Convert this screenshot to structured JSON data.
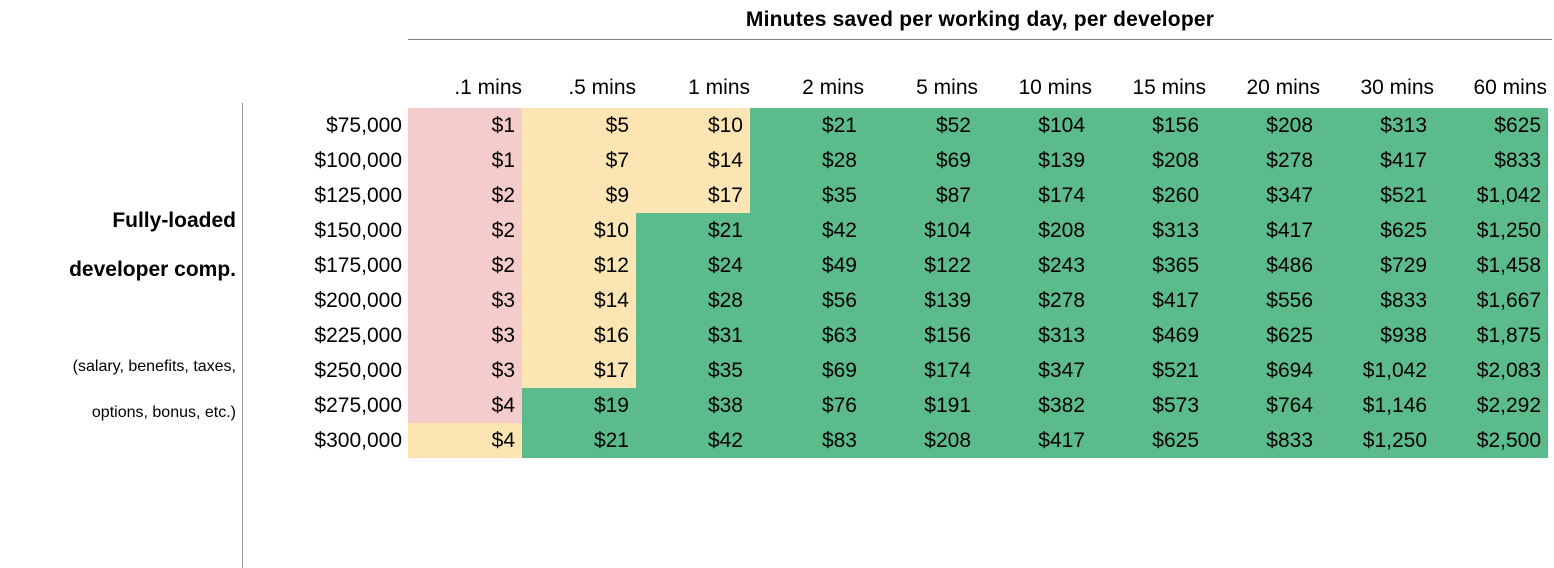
{
  "title": "Minutes saved per working day, per developer",
  "side_label": {
    "line1": "Fully-loaded",
    "line2": "developer comp.",
    "note1": "(salary, benefits, taxes,",
    "note2": "options, bonus, etc.)"
  },
  "colors": {
    "low": "#f4cccc",
    "mid": "#fce5b3",
    "high": "#5bbb8b"
  },
  "columns": [
    ".1 mins",
    ".5 mins",
    "1 mins",
    "2 mins",
    "5 mins",
    "10 mins",
    "15 mins",
    "20 mins",
    "30 mins",
    "60 mins"
  ],
  "rows": [
    {
      "comp": "$75,000",
      "values": [
        "$1",
        "$5",
        "$10",
        "$21",
        "$52",
        "$104",
        "$156",
        "$208",
        "$313",
        "$625"
      ],
      "tiers": [
        "low",
        "mid",
        "mid",
        "high",
        "high",
        "high",
        "high",
        "high",
        "high",
        "high"
      ]
    },
    {
      "comp": "$100,000",
      "values": [
        "$1",
        "$7",
        "$14",
        "$28",
        "$69",
        "$139",
        "$208",
        "$278",
        "$417",
        "$833"
      ],
      "tiers": [
        "low",
        "mid",
        "mid",
        "high",
        "high",
        "high",
        "high",
        "high",
        "high",
        "high"
      ]
    },
    {
      "comp": "$125,000",
      "values": [
        "$2",
        "$9",
        "$17",
        "$35",
        "$87",
        "$174",
        "$260",
        "$347",
        "$521",
        "$1,042"
      ],
      "tiers": [
        "low",
        "mid",
        "mid",
        "high",
        "high",
        "high",
        "high",
        "high",
        "high",
        "high"
      ]
    },
    {
      "comp": "$150,000",
      "values": [
        "$2",
        "$10",
        "$21",
        "$42",
        "$104",
        "$208",
        "$313",
        "$417",
        "$625",
        "$1,250"
      ],
      "tiers": [
        "low",
        "mid",
        "high",
        "high",
        "high",
        "high",
        "high",
        "high",
        "high",
        "high"
      ]
    },
    {
      "comp": "$175,000",
      "values": [
        "$2",
        "$12",
        "$24",
        "$49",
        "$122",
        "$243",
        "$365",
        "$486",
        "$729",
        "$1,458"
      ],
      "tiers": [
        "low",
        "mid",
        "high",
        "high",
        "high",
        "high",
        "high",
        "high",
        "high",
        "high"
      ]
    },
    {
      "comp": "$200,000",
      "values": [
        "$3",
        "$14",
        "$28",
        "$56",
        "$139",
        "$278",
        "$417",
        "$556",
        "$833",
        "$1,667"
      ],
      "tiers": [
        "low",
        "mid",
        "high",
        "high",
        "high",
        "high",
        "high",
        "high",
        "high",
        "high"
      ]
    },
    {
      "comp": "$225,000",
      "values": [
        "$3",
        "$16",
        "$31",
        "$63",
        "$156",
        "$313",
        "$469",
        "$625",
        "$938",
        "$1,875"
      ],
      "tiers": [
        "low",
        "mid",
        "high",
        "high",
        "high",
        "high",
        "high",
        "high",
        "high",
        "high"
      ]
    },
    {
      "comp": "$250,000",
      "values": [
        "$3",
        "$17",
        "$35",
        "$69",
        "$174",
        "$347",
        "$521",
        "$694",
        "$1,042",
        "$2,083"
      ],
      "tiers": [
        "low",
        "mid",
        "high",
        "high",
        "high",
        "high",
        "high",
        "high",
        "high",
        "high"
      ]
    },
    {
      "comp": "$275,000",
      "values": [
        "$4",
        "$19",
        "$38",
        "$76",
        "$191",
        "$382",
        "$573",
        "$764",
        "$1,146",
        "$2,292"
      ],
      "tiers": [
        "low",
        "high",
        "high",
        "high",
        "high",
        "high",
        "high",
        "high",
        "high",
        "high"
      ]
    },
    {
      "comp": "$300,000",
      "values": [
        "$4",
        "$21",
        "$42",
        "$83",
        "$208",
        "$417",
        "$625",
        "$833",
        "$1,250",
        "$2,500"
      ],
      "tiers": [
        "mid",
        "high",
        "high",
        "high",
        "high",
        "high",
        "high",
        "high",
        "high",
        "high"
      ]
    }
  ]
}
